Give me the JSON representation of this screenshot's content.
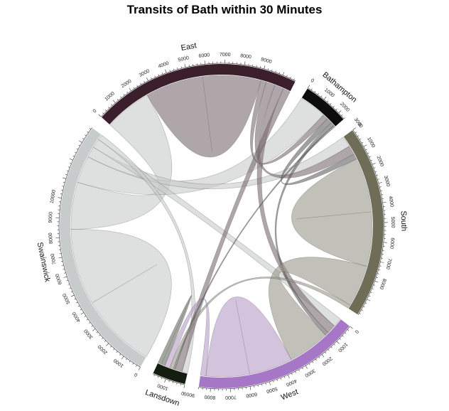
{
  "chart_data": {
    "type": "chord",
    "title": "Transits of Bath within 30 Minutes",
    "sectors": [
      {
        "name": "Swainswick",
        "color": "#c8cbcc",
        "ticks": [
          0,
          1000,
          2000,
          3000,
          4000,
          5000,
          6000,
          7000,
          8000,
          9000,
          10000
        ]
      },
      {
        "name": "East",
        "color": "#3b1f2b",
        "ticks": [
          0,
          1000,
          2000,
          3000,
          4000,
          5000,
          6000,
          7000,
          8000,
          9000
        ]
      },
      {
        "name": "Bathampton",
        "color": "#0d0d0d",
        "ticks": [
          0,
          1000,
          2000,
          3000
        ]
      },
      {
        "name": "South",
        "color": "#6f6d58",
        "ticks": [
          0,
          1000,
          2000,
          3000,
          4000,
          5000,
          6000,
          7000,
          8000
        ]
      },
      {
        "name": "West",
        "color": "#a577c6",
        "ticks": [
          0,
          1000,
          2000,
          3000,
          4000,
          5000,
          6000,
          7000,
          8000,
          9000
        ]
      },
      {
        "name": "Lansdown",
        "color": "#141d10",
        "ticks": [
          0,
          1000
        ]
      }
    ],
    "flows": [
      {
        "from": "Swainswick",
        "to": "Swainswick",
        "value": 4200
      },
      {
        "from": "Swainswick",
        "to": "East",
        "value": 2600
      },
      {
        "from": "Swainswick",
        "to": "Bathampton",
        "value": 1500
      },
      {
        "from": "Swainswick",
        "to": "South",
        "value": 600
      },
      {
        "from": "Swainswick",
        "to": "West",
        "value": 500
      },
      {
        "from": "Swainswick",
        "to": "Lansdown",
        "value": 300
      },
      {
        "from": "East",
        "to": "East",
        "value": 3200
      },
      {
        "from": "East",
        "to": "Bathampton",
        "value": 300
      },
      {
        "from": "East",
        "to": "South",
        "value": 500
      },
      {
        "from": "East",
        "to": "West",
        "value": 500
      },
      {
        "from": "East",
        "to": "Lansdown",
        "value": 400
      },
      {
        "from": "Bathampton",
        "to": "South",
        "value": 300
      },
      {
        "from": "Bathampton",
        "to": "West",
        "value": 200
      },
      {
        "from": "Bathampton",
        "to": "Lansdown",
        "value": 100
      },
      {
        "from": "South",
        "to": "South",
        "value": 3000
      },
      {
        "from": "South",
        "to": "West",
        "value": 2300
      },
      {
        "from": "South",
        "to": "Lansdown",
        "value": 200
      },
      {
        "from": "West",
        "to": "West",
        "value": 2400
      },
      {
        "from": "West",
        "to": "Lansdown",
        "value": 300
      },
      {
        "from": "Lansdown",
        "to": "Lansdown",
        "value": 200
      }
    ]
  }
}
